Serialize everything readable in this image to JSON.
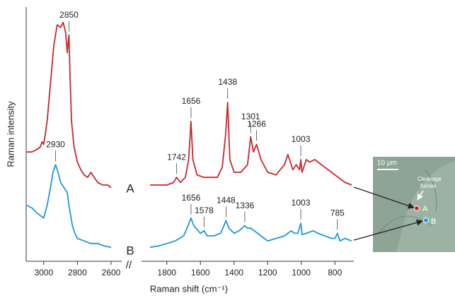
{
  "chart_data": [
    {
      "type": "line",
      "y_label": "Raman intensity",
      "x_label": "Raman shift (cm⁻¹)",
      "xlim": [
        3100,
        2600
      ],
      "xticks": [
        3000,
        2800,
        2600
      ],
      "ylim": [
        0,
        100
      ],
      "series": [
        {
          "color": "#c8282d",
          "x": [
            3100,
            3070,
            3040,
            3020,
            3010,
            3000,
            2980,
            2960,
            2940,
            2920,
            2900,
            2885,
            2870,
            2860,
            2855,
            2850,
            2845,
            2835,
            2820,
            2800,
            2780,
            2760,
            2740,
            2720,
            2700,
            2680,
            2650,
            2620,
            2600
          ],
          "values": [
            43,
            43,
            44,
            45,
            47,
            46,
            55,
            70,
            85,
            93,
            92,
            94,
            90,
            82,
            86,
            89,
            75,
            55,
            45,
            39,
            36,
            34,
            33,
            35,
            33,
            31,
            30,
            30,
            29
          ],
          "peaks": [
            2850
          ]
        },
        {
          "color": "#1e9ad6",
          "x": [
            3100,
            3070,
            3040,
            3000,
            2980,
            2960,
            2945,
            2930,
            2915,
            2900,
            2880,
            2860,
            2850,
            2840,
            2830,
            2815,
            2800,
            2760,
            2720,
            2680,
            2640,
            2600
          ],
          "values": [
            22,
            21,
            19,
            17,
            22,
            29,
            35,
            38,
            35,
            31,
            29,
            27,
            22,
            18,
            14,
            11,
            9,
            8,
            7,
            7,
            6,
            5.5
          ],
          "peaks": [
            2930
          ]
        }
      ]
    },
    {
      "type": "line",
      "xlim": [
        1900,
        700
      ],
      "xticks": [
        1800,
        1600,
        1400,
        1200,
        1000,
        800
      ],
      "ylim": [
        0,
        100
      ],
      "series": [
        {
          "name": "A",
          "color": "#c8282d",
          "x": [
            1900,
            1850,
            1800,
            1760,
            1742,
            1720,
            1690,
            1670,
            1656,
            1645,
            1620,
            1580,
            1540,
            1500,
            1470,
            1450,
            1438,
            1425,
            1400,
            1360,
            1320,
            1301,
            1285,
            1266,
            1240,
            1200,
            1150,
            1100,
            1080,
            1050,
            1030,
            1010,
            1003,
            995,
            970,
            950,
            920,
            900,
            860,
            820,
            780,
            740,
            700
          ],
          "values": [
            30,
            30,
            30,
            31,
            33,
            31,
            33,
            40,
            55,
            40,
            34,
            33,
            33,
            33,
            37,
            50,
            62.5,
            40,
            35,
            35,
            38,
            49,
            43,
            46,
            40,
            35,
            34,
            38,
            42,
            36,
            38,
            36,
            40,
            35,
            40,
            39,
            40,
            39,
            37,
            35,
            33,
            31,
            30
          ],
          "peaks": [
            1742,
            1656,
            1438,
            1301,
            1266,
            1003
          ]
        },
        {
          "name": "B",
          "color": "#1e9ad6",
          "x": [
            1900,
            1850,
            1800,
            1750,
            1700,
            1680,
            1656,
            1640,
            1620,
            1600,
            1578,
            1560,
            1520,
            1480,
            1460,
            1448,
            1430,
            1400,
            1370,
            1336,
            1320,
            1300,
            1260,
            1220,
            1200,
            1150,
            1100,
            1060,
            1040,
            1020,
            1003,
            995,
            970,
            930,
            900,
            860,
            820,
            800,
            785,
            770,
            740,
            700
          ],
          "values": [
            5.5,
            6,
            7,
            8,
            10,
            13,
            17,
            14,
            12.5,
            11,
            12,
            10,
            10,
            11,
            14,
            16,
            13,
            11,
            12,
            14,
            13,
            13,
            11,
            9,
            8,
            9,
            10,
            12,
            11,
            11,
            15,
            10.5,
            11,
            12,
            11,
            10,
            9,
            9,
            11,
            8,
            9,
            8
          ],
          "peaks": [
            1656,
            1578,
            1448,
            1336,
            1003,
            785
          ]
        }
      ]
    }
  ],
  "inset": {
    "scale_bar": "10 µm",
    "annotation": [
      "Cleavage",
      "furrow"
    ],
    "points": [
      "A",
      "B"
    ]
  }
}
